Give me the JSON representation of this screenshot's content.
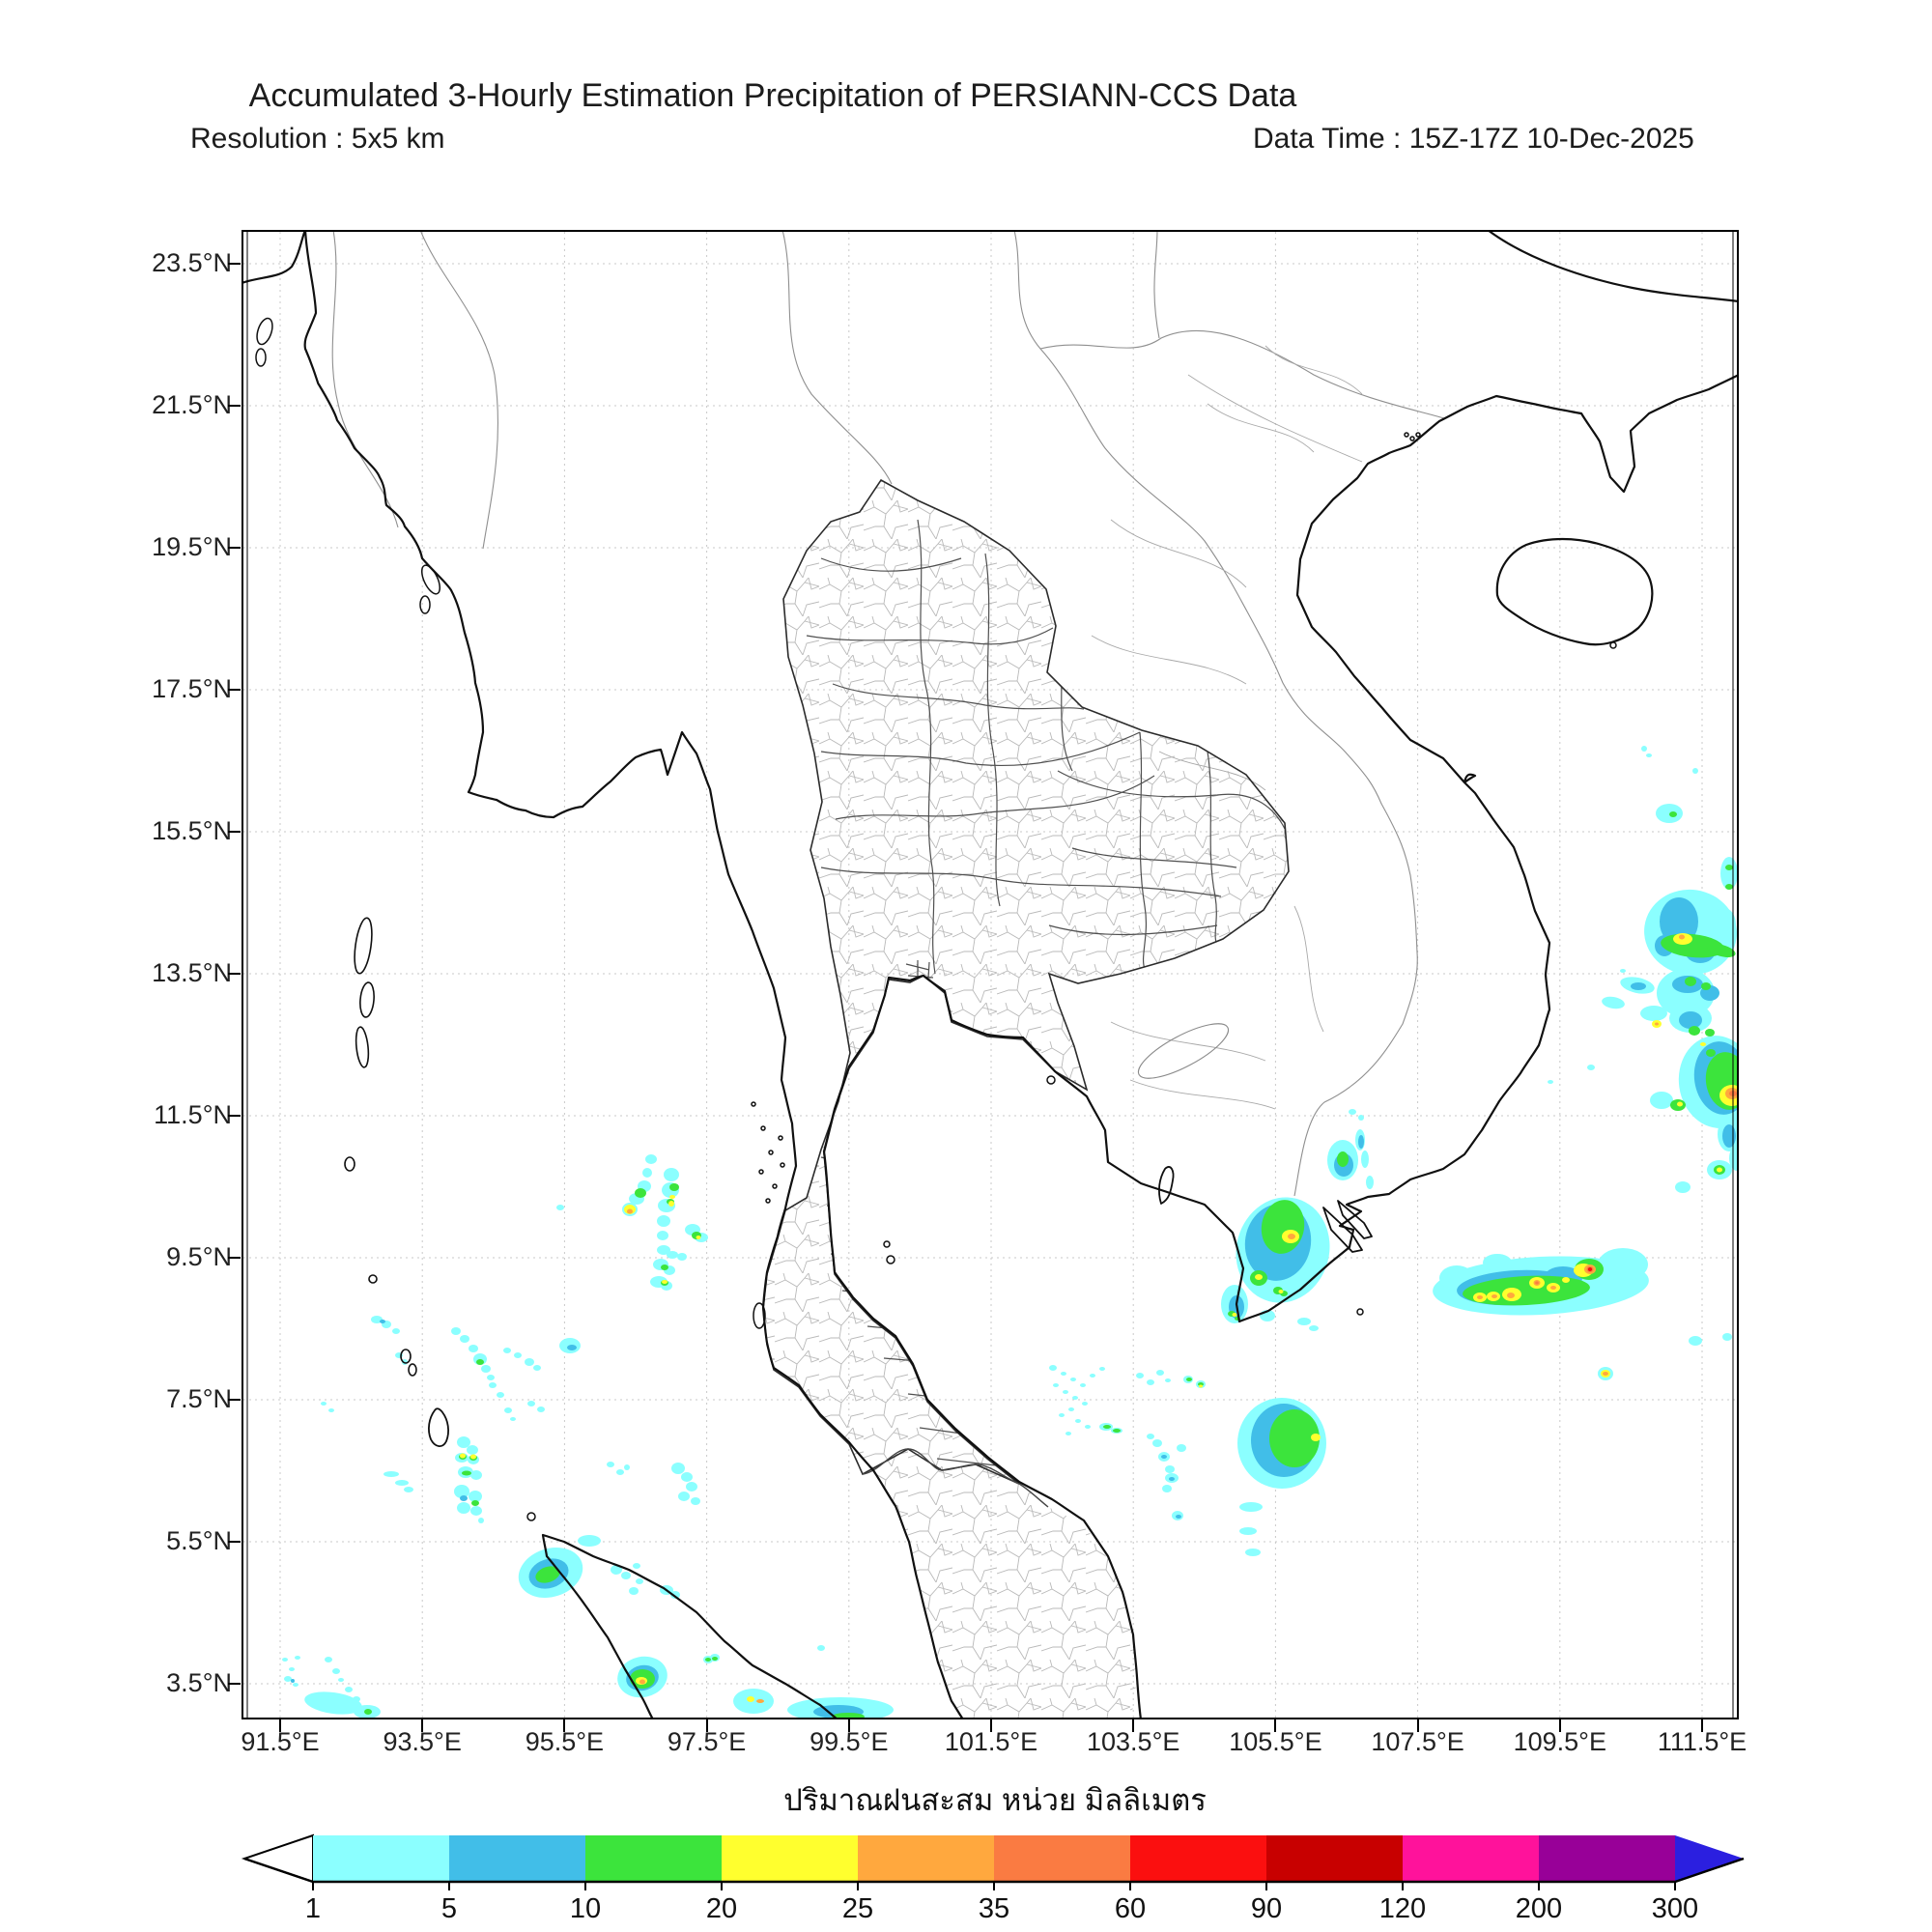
{
  "header": {
    "title": "Accumulated 3-Hourly Estimation Precipitation of PERSIANN-CCS Data",
    "resolution_label": "Resolution : 5x5 km",
    "datatime_label": "Data Time : 15Z-17Z 10-Dec-2025"
  },
  "map": {
    "y_axis": {
      "ticks": [
        "23.5°N",
        "21.5°N",
        "19.5°N",
        "17.5°N",
        "15.5°N",
        "13.5°N",
        "11.5°N",
        "9.5°N",
        "7.5°N",
        "5.5°N",
        "3.5°N"
      ]
    },
    "x_axis": {
      "ticks": [
        "91.5°E",
        "93.5°E",
        "95.5°E",
        "97.5°E",
        "99.5°E",
        "101.5°E",
        "103.5°E",
        "105.5°E",
        "107.5°E",
        "109.5°E",
        "111.5°E"
      ]
    },
    "xlabel_thai": "ปริมาณฝนสะสม หน่วย มิลลิเมตร"
  },
  "colorbar": {
    "ticks": [
      "1",
      "5",
      "10",
      "20",
      "25",
      "35",
      "60",
      "90",
      "120",
      "200",
      "300"
    ],
    "segment_colors": [
      "#8BFFFF",
      "#41BEE8",
      "#3CE43C",
      "#FFFF2E",
      "#FFA83E",
      "#FA7B42",
      "#FB0F0F",
      "#C80000",
      "#FF129B",
      "#980098"
    ],
    "arrow_left_color": "#FFFFFF",
    "arrow_right_color": "#2B1FE0",
    "unit_label_thai": "ปริมาณฝนสะสม หน่วย มิลลิเมตร"
  },
  "chart_data": {
    "type": "heatmap",
    "title": "Accumulated 3-Hourly Estimation Precipitation of PERSIANN-CCS Data",
    "legend_boundaries_mm": [
      1,
      5,
      10,
      20,
      25,
      35,
      60,
      90,
      120,
      200,
      300
    ],
    "legend_colors": [
      "#8BFFFF",
      "#41BEE8",
      "#3CE43C",
      "#FFFF2E",
      "#FFA83E",
      "#FA7B42",
      "#FB0F0F",
      "#C80000",
      "#FF129B",
      "#980098"
    ],
    "x_ticks_lon": [
      "91.5°E",
      "93.5°E",
      "95.5°E",
      "97.5°E",
      "99.5°E",
      "101.5°E",
      "103.5°E",
      "105.5°E",
      "107.5°E",
      "109.5°E",
      "111.5°E"
    ],
    "y_ticks_lat": [
      "3.5°N",
      "5.5°N",
      "7.5°N",
      "9.5°N",
      "11.5°N",
      "13.5°N",
      "15.5°N",
      "17.5°N",
      "19.5°N",
      "21.5°N",
      "23.5°N"
    ],
    "grid": true,
    "legend_position": "bottom"
  }
}
